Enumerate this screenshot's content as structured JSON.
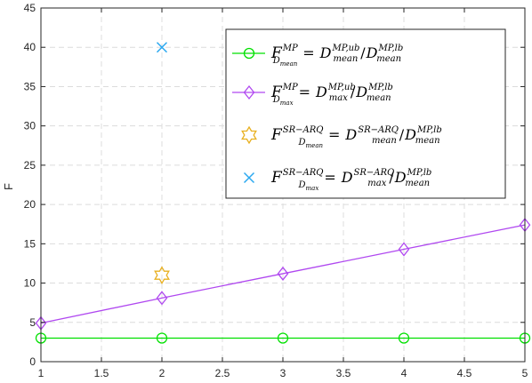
{
  "chart_data": {
    "type": "line",
    "title": "",
    "xlabel": "",
    "ylabel": "F",
    "xlim": [
      1,
      5
    ],
    "ylim": [
      0,
      45
    ],
    "xticks": [
      1,
      1.5,
      2,
      2.5,
      3,
      3.5,
      4,
      4.5,
      5
    ],
    "yticks": [
      0,
      5,
      10,
      15,
      20,
      25,
      30,
      35,
      40,
      45
    ],
    "xtick_labels": [
      "1",
      "1.5",
      "2",
      "2.5",
      "3",
      "3.5",
      "4",
      "4.5",
      "5"
    ],
    "ytick_labels": [
      "0",
      "5",
      "10",
      "15",
      "20",
      "25",
      "30",
      "35",
      "40",
      "45"
    ],
    "grid": true,
    "legend_position": "top-right",
    "series": [
      {
        "key": "mp_mean",
        "marker": "circle",
        "line": true,
        "color": "#00e000",
        "x": [
          1,
          2,
          3,
          4,
          5
        ],
        "y": [
          3.0,
          3.0,
          3.0,
          3.0,
          3.0
        ],
        "legend": {
          "F": "F",
          "Fsub": "D",
          "Fsubsub": "mean",
          "Fsup": "MP",
          "eq": "=",
          "num": "D",
          "numsub": "mean",
          "numsup": "MP,ub",
          "slash": "/",
          "den": "D",
          "densub": "mean",
          "densup": "MP,lb"
        }
      },
      {
        "key": "mp_max",
        "marker": "diamond",
        "line": true,
        "color": "#b048f0",
        "x": [
          1,
          2,
          3,
          4,
          5
        ],
        "y": [
          4.9,
          8.1,
          11.2,
          14.3,
          17.4
        ],
        "legend": {
          "F": "F",
          "Fsub": "D",
          "Fsubsub": "max",
          "Fsup": "MP",
          "eq": "=",
          "num": "D",
          "numsub": "max",
          "numsup": "MP,ub",
          "slash": "/",
          "den": "D",
          "densub": "mean",
          "densup": "MP,lb"
        }
      },
      {
        "key": "sr_mean",
        "marker": "hexagram",
        "line": false,
        "color": "#e8b020",
        "x": [
          2
        ],
        "y": [
          11.0
        ],
        "legend": {
          "F": "F",
          "Fsub": "D",
          "Fsubsub": "mean",
          "Fsup": "SR−ARQ",
          "eq": "=",
          "num": "D",
          "numsub": "mean",
          "numsup": "SR−ARQ",
          "slash": "/",
          "den": "D",
          "densub": "mean",
          "densup": "MP,lb"
        }
      },
      {
        "key": "sr_max",
        "marker": "x",
        "line": false,
        "color": "#2aa8f0",
        "x": [
          2
        ],
        "y": [
          40.0
        ],
        "legend": {
          "F": "F",
          "Fsub": "D",
          "Fsubsub": "max",
          "Fsup": "SR−ARQ",
          "eq": "=",
          "num": "D",
          "numsub": "max",
          "numsup": "SR−ARQ",
          "slash": "/",
          "den": "D",
          "densub": "mean",
          "densup": "MP,lb"
        }
      }
    ]
  }
}
